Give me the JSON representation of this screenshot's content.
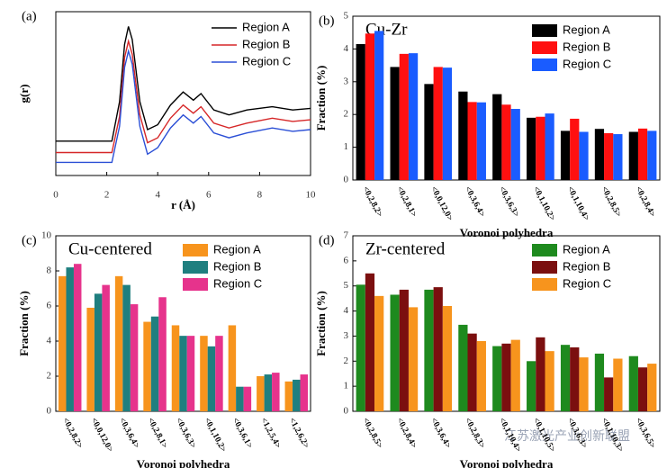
{
  "chart_data": [
    {
      "type": "line",
      "label": "(a)",
      "xlabel": "r (Å)",
      "ylabel": "g(r)",
      "x": [
        0,
        2.2,
        2.5,
        2.7,
        2.85,
        3.0,
        3.3,
        3.6,
        4.0,
        4.5,
        5.0,
        5.4,
        5.7,
        6.2,
        6.8,
        7.5,
        8.5,
        9.3,
        10
      ],
      "series": [
        {
          "name": "Region A",
          "color": "#000000",
          "values": [
            2.1,
            2.1,
            4.5,
            8.0,
            9.1,
            8.3,
            4.5,
            2.8,
            3.1,
            4.3,
            5.1,
            4.6,
            5.0,
            4.0,
            3.7,
            4.0,
            4.2,
            4.0,
            4.1
          ]
        },
        {
          "name": "Region B",
          "color": "#d62728",
          "values": [
            1.4,
            1.4,
            3.6,
            7.2,
            8.2,
            7.4,
            3.7,
            2.0,
            2.3,
            3.5,
            4.3,
            3.8,
            4.2,
            3.2,
            2.9,
            3.2,
            3.5,
            3.3,
            3.4
          ]
        },
        {
          "name": "Region C",
          "color": "#2b4fd6",
          "values": [
            0.8,
            0.8,
            3.0,
            6.6,
            7.6,
            6.8,
            3.0,
            1.3,
            1.7,
            2.9,
            3.7,
            3.2,
            3.6,
            2.6,
            2.3,
            2.6,
            2.9,
            2.7,
            2.8
          ]
        }
      ],
      "xlim": [
        0,
        10
      ],
      "xticks": [
        0,
        2,
        4,
        6,
        8,
        10
      ],
      "ylim": [
        0,
        10
      ],
      "legend": "upper right"
    },
    {
      "type": "bar",
      "label": "(b)",
      "title": "Cu-Zr",
      "xlabel": "Voronoi polyhedra",
      "ylabel": "Fraction (%)",
      "categories": [
        "<0,2,8,2>",
        "<0,2,8,1>",
        "<0,0,12,0>",
        "<0,3,6,4>",
        "<0,3,6,3>",
        "<0,1,10,2>",
        "<0,1,10,4>",
        "<0,2,8,5>",
        "<0,2,8,4>"
      ],
      "series": [
        {
          "name": "Region A",
          "color": "#000000",
          "values": [
            4.15,
            3.45,
            2.93,
            2.7,
            2.62,
            1.9,
            1.5,
            1.56,
            1.47
          ]
        },
        {
          "name": "Region B",
          "color": "#ff1010",
          "values": [
            4.47,
            3.85,
            3.45,
            2.38,
            2.3,
            1.93,
            1.87,
            1.43,
            1.57
          ]
        },
        {
          "name": "Region C",
          "color": "#1a5cff",
          "values": [
            4.55,
            3.87,
            3.43,
            2.37,
            2.17,
            2.03,
            1.47,
            1.4,
            1.5
          ]
        }
      ],
      "ylim": [
        0,
        5
      ],
      "yticks": [
        0,
        1,
        2,
        3,
        4,
        5
      ],
      "legend": "upper right"
    },
    {
      "type": "bar",
      "label": "(c)",
      "title": "Cu-centered",
      "xlabel": "Voronoi polyhedra",
      "ylabel": "Fraction (%)",
      "categories": [
        "<0,2,8,2>",
        "<0,0,12,0>",
        "<0,3,6,4>",
        "<0,2,8,1>",
        "<0,3,6,3>",
        "<0,1,10,2>",
        "<0,3,6,1>",
        "<1,2,5,4>",
        "<1,2,6,2>"
      ],
      "series": [
        {
          "name": "Region A",
          "color": "#f7941d",
          "values": [
            7.7,
            5.9,
            7.7,
            5.1,
            4.9,
            4.3,
            4.9,
            2.0,
            1.7
          ]
        },
        {
          "name": "Region B",
          "color": "#1f7f7f",
          "values": [
            8.2,
            6.7,
            7.2,
            5.4,
            4.3,
            3.7,
            1.4,
            2.1,
            1.8
          ]
        },
        {
          "name": "Region C",
          "color": "#e6338c",
          "values": [
            8.4,
            7.2,
            6.1,
            6.5,
            4.3,
            4.3,
            1.4,
            2.2,
            2.1
          ]
        }
      ],
      "ylim": [
        0,
        10
      ],
      "yticks": [
        0,
        2,
        4,
        6,
        8,
        10
      ],
      "legend": "upper right"
    },
    {
      "type": "bar",
      "label": "(d)",
      "title": "Zr-centered",
      "xlabel": "Voronoi polyhedra",
      "ylabel": "Fraction (%)",
      "categories": [
        "<0,2,8,5>",
        "<0,2,8,4>",
        "<0,3,6,4>",
        "<0,2,8,3>",
        "<0,1,10,4>",
        "<0,1,10,5>",
        "<0,3,6,3>",
        "<0,1,10,3>",
        "<0,3,6,5>"
      ],
      "series": [
        {
          "name": "Region A",
          "color": "#1e8a1e",
          "values": [
            5.05,
            4.65,
            4.85,
            3.45,
            2.6,
            2.0,
            2.65,
            2.3,
            2.2
          ]
        },
        {
          "name": "Region B",
          "color": "#7b0f0f",
          "values": [
            5.5,
            4.85,
            4.95,
            3.1,
            2.7,
            2.95,
            2.55,
            1.35,
            1.75
          ]
        },
        {
          "name": "Region C",
          "color": "#f7941d",
          "values": [
            4.6,
            4.15,
            4.2,
            2.8,
            2.85,
            2.4,
            2.15,
            2.1,
            1.9
          ]
        }
      ],
      "ylim": [
        0,
        7
      ],
      "yticks": [
        0,
        1,
        2,
        3,
        4,
        5,
        6,
        7
      ],
      "legend": "upper right"
    }
  ],
  "watermark": "江苏激光产业创新联盟"
}
